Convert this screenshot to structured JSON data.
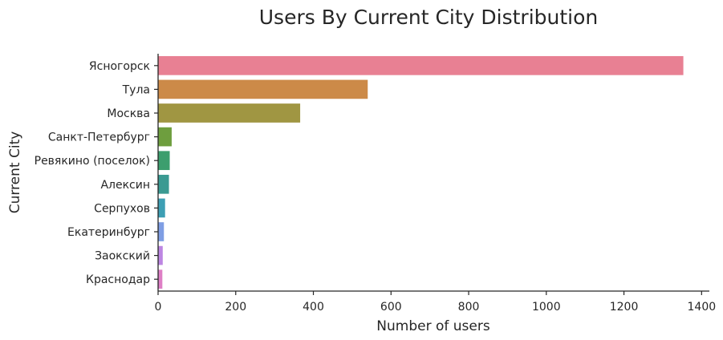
{
  "chart_data": {
    "type": "bar",
    "orientation": "horizontal",
    "title": "Users By Current City Distribution",
    "xlabel": "Number of users",
    "ylabel": "Current City",
    "xlim": [
      0,
      1420
    ],
    "xticks": [
      0,
      200,
      400,
      600,
      800,
      1000,
      1200,
      1400
    ],
    "categories": [
      "Ясногорск",
      "Тула",
      "Москва",
      "Санкт-Петербург",
      "Ревякино (поселок)",
      "Алексин",
      "Серпухов",
      "Екатеринбург",
      "Заокский",
      "Краснодар"
    ],
    "values": [
      1353,
      540,
      366,
      35,
      30,
      28,
      18,
      15,
      12,
      11
    ],
    "colors": [
      "#e88093",
      "#cc8a48",
      "#a09642",
      "#6e9e3e",
      "#3c9e6e",
      "#3a9a92",
      "#3d9fb4",
      "#7f9ee4",
      "#bd86e2",
      "#de7fc6"
    ],
    "grid": false,
    "legend": "none"
  }
}
